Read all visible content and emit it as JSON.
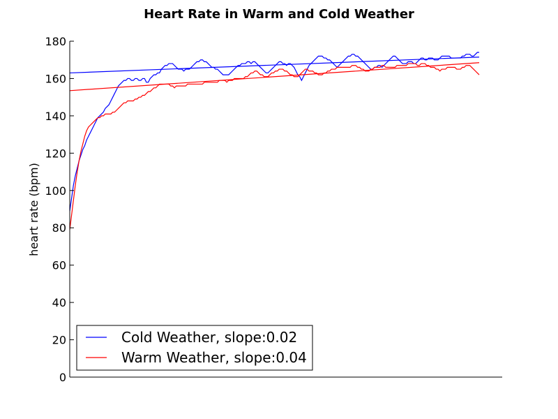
{
  "chart_data": {
    "type": "line",
    "title": "Heart Rate in Warm and Cold Weather",
    "xlabel": "",
    "ylabel": "heart rate (bpm)",
    "ylim": [
      0,
      180
    ],
    "yticks": [
      0,
      20,
      40,
      60,
      80,
      100,
      120,
      140,
      160,
      180
    ],
    "x_ticks_shown": false,
    "grid": false,
    "legend_position": "lower-left",
    "n_samples": 220,
    "series": [
      {
        "name": "Cold Weather, slope:0.02",
        "color": "#0000ff",
        "values": [
          89,
          96,
          103,
          108,
          112,
          116,
          119,
          122,
          124,
          127,
          129,
          131,
          133,
          135,
          137,
          139,
          140,
          141,
          142,
          144,
          145,
          146,
          148,
          150,
          152,
          154,
          156,
          157,
          158,
          159,
          159,
          160,
          160,
          159,
          159,
          160,
          160,
          159,
          159,
          160,
          160,
          158,
          158,
          160,
          161,
          162,
          162,
          163,
          163,
          165,
          166,
          167,
          167,
          168,
          168,
          168,
          167,
          166,
          165,
          165,
          165,
          164,
          165,
          165,
          165,
          166,
          167,
          168,
          169,
          169,
          170,
          170,
          169,
          169,
          168,
          167,
          166,
          166,
          165,
          165,
          164,
          163,
          162,
          162,
          162,
          162,
          163,
          164,
          165,
          166,
          167,
          167,
          168,
          168,
          168,
          169,
          169,
          168,
          169,
          169,
          168,
          167,
          166,
          165,
          164,
          163,
          163,
          164,
          165,
          166,
          167,
          168,
          169,
          169,
          168,
          168,
          167,
          168,
          168,
          167,
          166,
          164,
          162,
          161,
          159,
          161,
          163,
          165,
          167,
          168,
          169,
          170,
          171,
          172,
          172,
          172,
          171,
          171,
          170,
          170,
          169,
          168,
          167,
          166,
          167,
          168,
          169,
          170,
          171,
          172,
          172,
          173,
          173,
          172,
          172,
          171,
          170,
          169,
          168,
          167,
          166,
          165,
          165,
          166,
          166,
          167,
          167,
          166,
          167,
          168,
          169,
          170,
          171,
          172,
          172,
          171,
          170,
          169,
          168,
          168,
          168,
          169,
          169,
          169,
          168,
          168,
          169,
          170,
          171,
          171,
          170,
          170,
          171,
          171,
          171,
          170,
          170,
          170,
          171,
          172,
          172,
          172,
          172,
          172,
          171,
          171,
          171,
          171,
          171,
          171,
          172,
          172,
          173,
          173,
          173,
          172,
          172,
          173,
          174,
          174
        ]
      },
      {
        "name": "Warm Weather, slope:0.04",
        "color": "#ff0000",
        "values": [
          79,
          87,
          95,
          103,
          110,
          116,
          121,
          125,
          129,
          132,
          134,
          135,
          136,
          137,
          138,
          139,
          139,
          140,
          140,
          141,
          141,
          141,
          141,
          142,
          142,
          143,
          144,
          145,
          146,
          147,
          147,
          148,
          148,
          148,
          148,
          149,
          149,
          150,
          150,
          151,
          151,
          152,
          153,
          153,
          154,
          155,
          155,
          156,
          157,
          157,
          157,
          157,
          157,
          157,
          156,
          156,
          155,
          156,
          156,
          156,
          156,
          156,
          156,
          157,
          157,
          157,
          157,
          157,
          157,
          157,
          157,
          157,
          158,
          158,
          158,
          158,
          158,
          158,
          158,
          158,
          159,
          159,
          159,
          159,
          158,
          159,
          159,
          159,
          160,
          160,
          160,
          160,
          160,
          160,
          161,
          161,
          162,
          163,
          163,
          164,
          164,
          163,
          162,
          162,
          161,
          161,
          161,
          162,
          163,
          163,
          164,
          164,
          165,
          165,
          165,
          164,
          164,
          163,
          162,
          162,
          161,
          161,
          161,
          162,
          163,
          164,
          165,
          165,
          164,
          164,
          164,
          163,
          163,
          162,
          162,
          162,
          163,
          163,
          164,
          164,
          165,
          165,
          165,
          166,
          166,
          166,
          166,
          166,
          166,
          166,
          166,
          167,
          167,
          167,
          166,
          166,
          165,
          165,
          164,
          164,
          164,
          165,
          165,
          166,
          166,
          166,
          166,
          167,
          167,
          166,
          166,
          166,
          166,
          166,
          166,
          167,
          167,
          167,
          167,
          167,
          167,
          168,
          168,
          168,
          168,
          168,
          167,
          167,
          168,
          168,
          168,
          167,
          167,
          166,
          166,
          166,
          165,
          165,
          164,
          165,
          165,
          165,
          166,
          166,
          166,
          166,
          166,
          165,
          165,
          165,
          166,
          166,
          167,
          167,
          167,
          166,
          165,
          164,
          163,
          162
        ]
      }
    ],
    "trendlines": [
      {
        "series": "Cold Weather, slope:0.02",
        "color": "#0000ff",
        "start": 163,
        "end": 171.5
      },
      {
        "series": "Warm Weather, slope:0.04",
        "color": "#ff0000",
        "start": 153.5,
        "end": 168.5
      }
    ]
  }
}
